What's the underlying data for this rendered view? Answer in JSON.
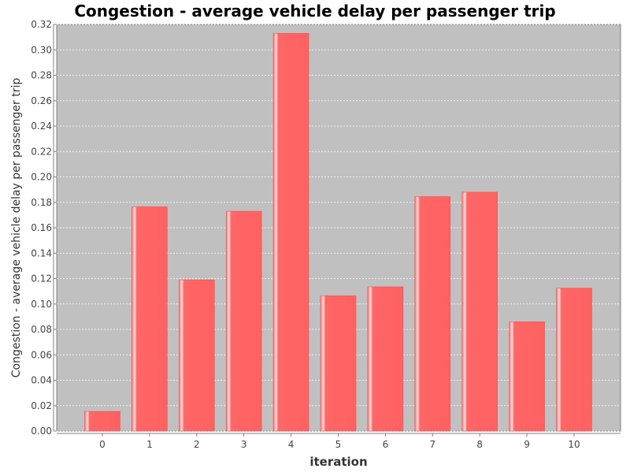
{
  "chart_data": {
    "type": "bar",
    "title": "Congestion -  average vehicle delay per passenger trip",
    "xlabel": "iteration",
    "ylabel": "Congestion -  average vehicle delay per passenger trip",
    "categories": [
      "0",
      "1",
      "2",
      "3",
      "4",
      "5",
      "6",
      "7",
      "8",
      "9",
      "10"
    ],
    "values": [
      0.0155,
      0.1765,
      0.119,
      0.173,
      0.313,
      0.1065,
      0.1135,
      0.1845,
      0.188,
      0.086,
      0.1125
    ],
    "ylim": [
      0,
      0.32
    ],
    "yticks": [
      "0.00",
      "0.02",
      "0.04",
      "0.06",
      "0.08",
      "0.10",
      "0.12",
      "0.14",
      "0.16",
      "0.18",
      "0.20",
      "0.22",
      "0.24",
      "0.26",
      "0.28",
      "0.30",
      "0.32"
    ],
    "grid": true,
    "legend": "none",
    "colors": {
      "bar": "#ff6666",
      "bar_highlight": "#ffffff",
      "plot_background": "#c0c0c0",
      "gridline": "#ffffff"
    }
  }
}
